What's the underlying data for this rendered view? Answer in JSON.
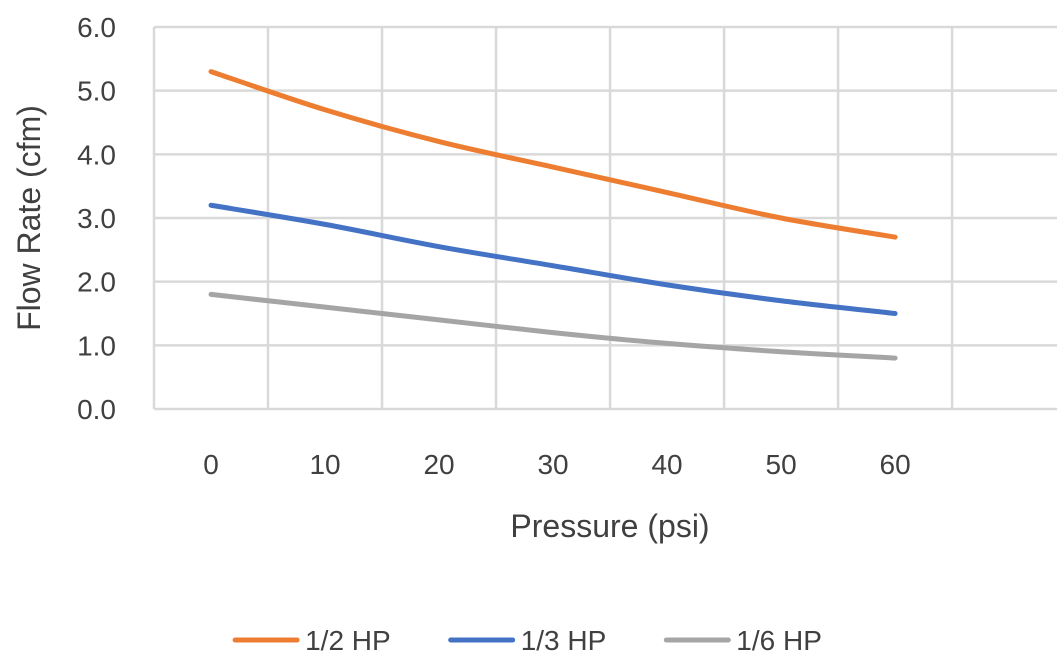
{
  "chart_data": {
    "type": "line",
    "title": "",
    "xlabel": "Pressure (psi)",
    "ylabel": "Flow Rate (cfm)",
    "x": [
      0,
      10,
      20,
      30,
      40,
      50,
      60
    ],
    "x_ticks": [
      "0",
      "10",
      "20",
      "30",
      "40",
      "50",
      "60"
    ],
    "y_ticks": [
      "0.0",
      "1.0",
      "2.0",
      "3.0",
      "4.0",
      "5.0",
      "6.0"
    ],
    "ylim": [
      0,
      6
    ],
    "grid": true,
    "smooth": true,
    "legend_position": "bottom",
    "series": [
      {
        "name": "1/2 HP",
        "color": "#ED7D31",
        "values": [
          5.3,
          4.7,
          4.2,
          3.8,
          3.4,
          3.0,
          2.7
        ]
      },
      {
        "name": "1/3 HP",
        "color": "#4472C4",
        "values": [
          3.2,
          2.9,
          2.55,
          2.25,
          1.95,
          1.7,
          1.5
        ]
      },
      {
        "name": "1/6 HP",
        "color": "#A5A5A5",
        "values": [
          1.8,
          1.6,
          1.4,
          1.2,
          1.03,
          0.9,
          0.8
        ]
      }
    ]
  }
}
